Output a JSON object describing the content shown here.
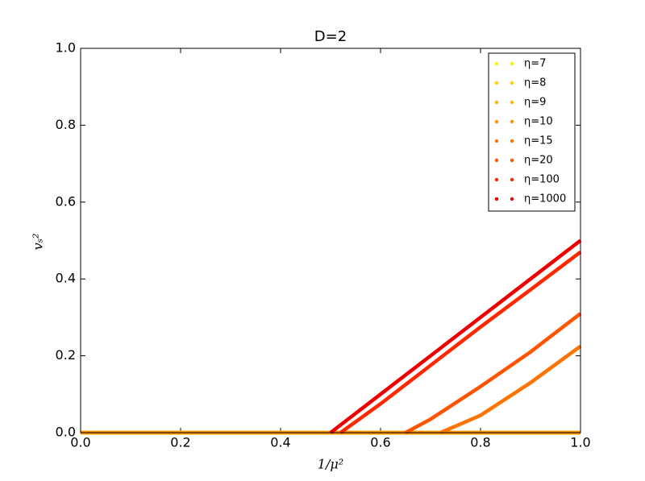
{
  "chart_data": {
    "type": "line",
    "title": "D=2",
    "x_label": "1/μ²",
    "y_label": "vₛ²",
    "xlim": [
      0,
      1
    ],
    "ylim": [
      0,
      1
    ],
    "xticks": [
      {
        "value": 0,
        "label": "0.0"
      },
      0.2,
      0.4,
      0.6,
      0.8,
      {
        "value": 1,
        "label": "1.0"
      }
    ],
    "yticks": [
      {
        "value": 0,
        "label": "0.0"
      },
      0.2,
      0.4,
      0.6,
      0.8,
      {
        "value": 1,
        "label": "1.0"
      }
    ],
    "grid": false,
    "legend": "upper right",
    "series": [
      {
        "name": "η=7",
        "color": "#ffee00",
        "x": [
          0,
          1
        ],
        "values": [
          0,
          0
        ]
      },
      {
        "name": "η=8",
        "color": "#ffd200",
        "x": [
          0,
          1
        ],
        "values": [
          0,
          0
        ]
      },
      {
        "name": "η=9",
        "color": "#ffb400",
        "x": [
          0,
          1
        ],
        "values": [
          0,
          0
        ]
      },
      {
        "name": "η=10",
        "color": "#ff9400",
        "x": [
          0,
          1
        ],
        "values": [
          0,
          0
        ]
      },
      {
        "name": "η=15",
        "color": "#ff7400",
        "x": [
          0.72,
          0.8,
          0.9,
          1.0
        ],
        "values": [
          0,
          0.045,
          0.13,
          0.225
        ]
      },
      {
        "name": "η=20",
        "color": "#ff5400",
        "x": [
          0.65,
          0.7,
          0.8,
          0.9,
          1.0
        ],
        "values": [
          0,
          0.035,
          0.12,
          0.21,
          0.31
        ]
      },
      {
        "name": "η=100",
        "color": "#ff2800",
        "x": [
          0.52,
          0.6,
          0.7,
          0.8,
          0.9,
          1.0
        ],
        "values": [
          0,
          0.075,
          0.175,
          0.275,
          0.372,
          0.47
        ]
      },
      {
        "name": "η=1000",
        "color": "#ee0000",
        "x": [
          0.5,
          0.6,
          0.7,
          0.8,
          0.9,
          1.0
        ],
        "values": [
          0,
          0.1,
          0.2,
          0.3,
          0.4,
          0.5
        ]
      }
    ]
  }
}
